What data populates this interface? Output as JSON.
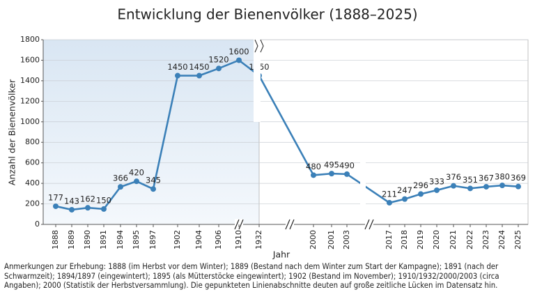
{
  "chart_data": {
    "type": "line",
    "title": "Entwicklung der Bienenvölker (1888–2025)",
    "x_label": "Jahr",
    "y_label": "Anzahl der Bienenvölker",
    "categories": [
      "1888",
      "1889",
      "1890",
      "1891",
      "1894",
      "1895",
      "1897",
      "1902",
      "1904",
      "1906",
      "1910",
      "1932",
      "2000",
      "2001",
      "2003",
      "2017",
      "2018",
      "2019",
      "2020",
      "2021",
      "2022",
      "2023",
      "2024",
      "2025"
    ],
    "series": [
      {
        "name": "Bienenvölker",
        "color": "#3b80b8",
        "values": [
          177,
          143,
          162,
          150,
          366,
          420,
          345,
          1450,
          1450,
          1520,
          1600,
          1450,
          480,
          495,
          490,
          211,
          247,
          296,
          333,
          376,
          351,
          367,
          380,
          369
        ]
      }
    ],
    "ylim": [
      0,
      1800
    ],
    "yticks": [
      0,
      200,
      400,
      600,
      800,
      1000,
      1200,
      1400,
      1600,
      1800
    ],
    "grid": true,
    "note": "Anmerkungen zur Erhebung: 1888 (im Herbst vor dem Winter); 1889 (Bestand nach dem Winter zum Start der Kampagne); 1891 (nach der Schwarmzeit); 1894/1897 (eingewintert); 1895 (als Mütterstöcke eingewintert); 1902 (Bestand im November); 1910/1932/2000/2003 (circa Angaben); 2000 (Statistik der Herbstversammlung). Die gepunkteten Linienabschnitte deuten auf große zeitliche Lücken im Datensatz hin."
  }
}
